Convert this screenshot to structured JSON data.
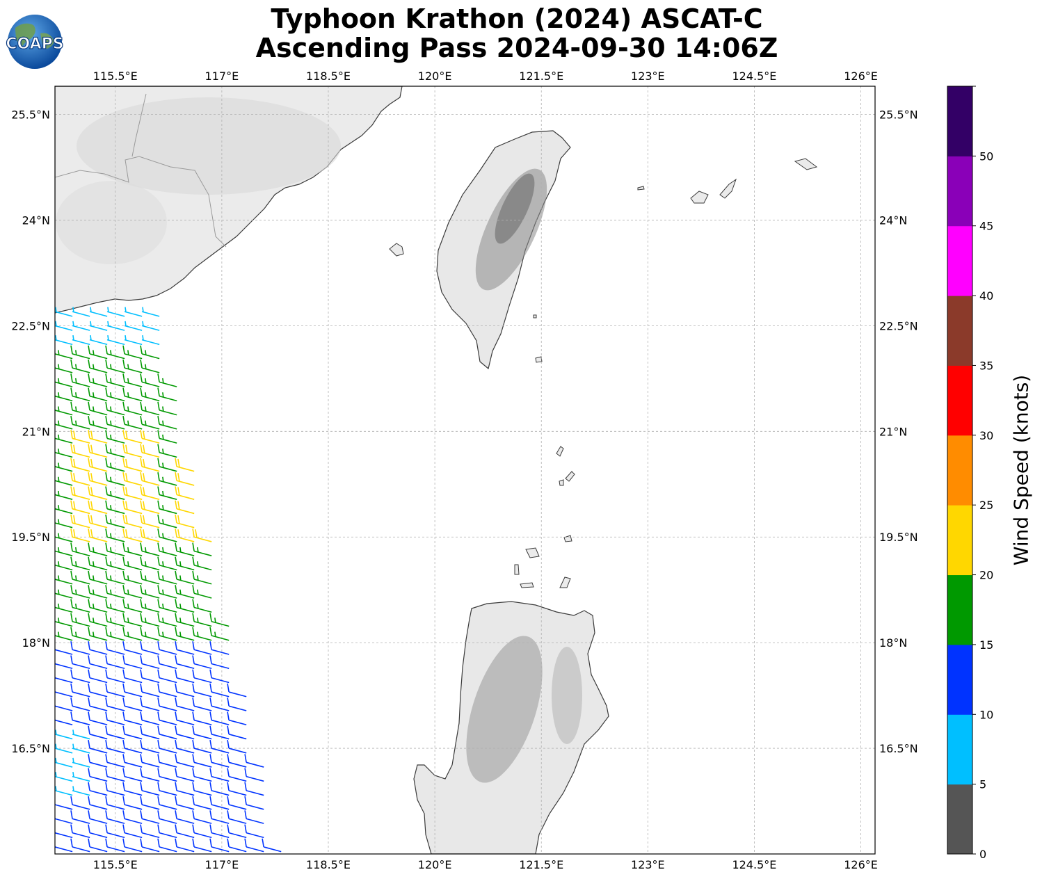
{
  "title": {
    "line1": "Typhoon Krathon (2024) ASCAT-C",
    "line2": "Ascending Pass 2024-09-30 14:06Z"
  },
  "logo": {
    "text": "COAPS"
  },
  "map": {
    "lon_range": [
      114.65,
      126.2
    ],
    "lat_range": [
      15.0,
      25.9
    ],
    "lon_ticks": [
      "115.5°E",
      "117°E",
      "118.5°E",
      "120°E",
      "121.5°E",
      "123°E",
      "124.5°E",
      "126°E"
    ],
    "lat_ticks": [
      "25.5°N",
      "24°N",
      "22.5°N",
      "21°N",
      "19.5°N",
      "18°N",
      "16.5°N"
    ],
    "gridlines": true,
    "land_regions": [
      "South China coast",
      "Taiwan",
      "Luzon"
    ]
  },
  "colorbar": {
    "label": "Wind Speed (knots)",
    "ticks": [
      "0",
      "5",
      "10",
      "15",
      "20",
      "25",
      "30",
      "35",
      "40",
      "45",
      "50"
    ],
    "colors": [
      "#555555",
      "#00bfff",
      "#0033ff",
      "#009900",
      "#ffd700",
      "#ff8c00",
      "#ff0000",
      "#8b3a2a",
      "#ff00ff",
      "#8a00b8",
      "#330066"
    ]
  },
  "wind_swath": {
    "description_units": "knots",
    "bands": [
      {
        "lat_from": 22.7,
        "lat_to": 22.2,
        "speed": 7
      },
      {
        "lat_from": 22.2,
        "lat_to": 21.0,
        "speed": 17
      },
      {
        "lat_from": 21.0,
        "lat_to": 19.4,
        "speed": 21
      },
      {
        "lat_from": 19.4,
        "lat_to": 18.0,
        "speed": 17
      },
      {
        "lat_from": 18.0,
        "lat_to": 16.8,
        "speed": 12
      },
      {
        "lat_from": 16.8,
        "lat_to": 15.0,
        "speed": 11
      }
    ]
  }
}
